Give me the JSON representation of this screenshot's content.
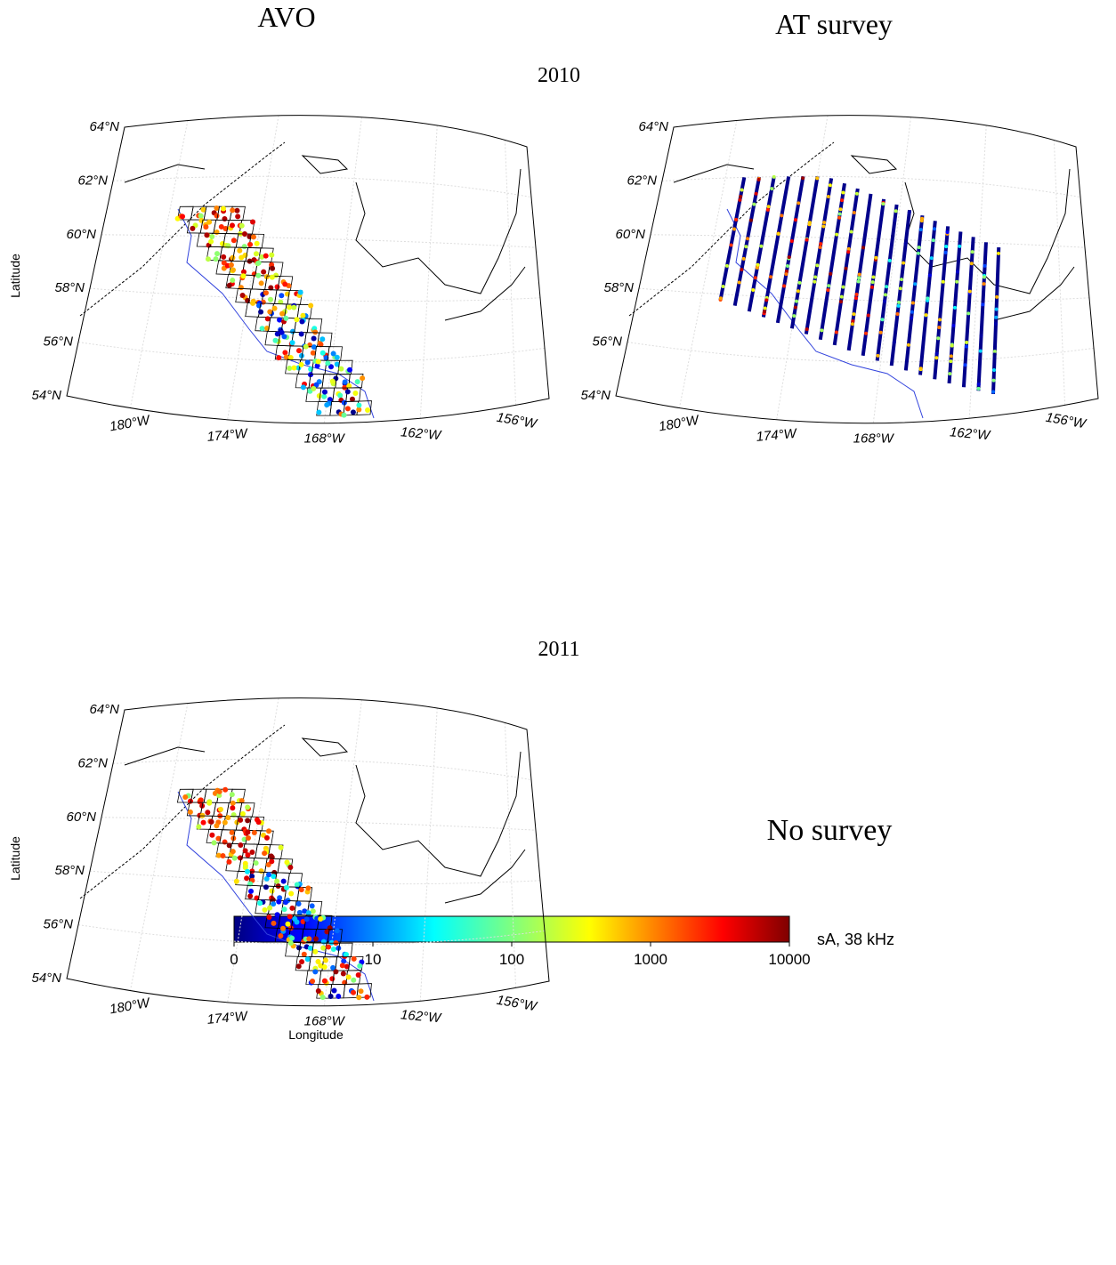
{
  "column_titles": [
    "AVO",
    "AT survey"
  ],
  "years": [
    "2010",
    "2011"
  ],
  "panels": [
    {
      "lat_labels": [
        "64°N",
        "62°N",
        "60°N",
        "58°N",
        "56°N",
        "54°N"
      ],
      "lon_labels": [
        "180°W",
        "174°W",
        "168°W",
        "162°W",
        "156°W"
      ],
      "y_label": "Latitude"
    },
    {
      "lat_labels": [
        "64°N",
        "62°N",
        "60°N",
        "58°N",
        "56°N",
        "54°N"
      ],
      "lon_labels": [
        "180°W",
        "174°W",
        "168°W",
        "162°W",
        "156°W"
      ]
    },
    {
      "lat_labels": [
        "64°N",
        "62°N",
        "60°N",
        "58°N",
        "56°N",
        "54°N"
      ],
      "lon_labels": [
        "180°W",
        "174°W",
        "168°W",
        "162°W",
        "156°W"
      ],
      "y_label": "Latitude",
      "x_label": "Longitude"
    }
  ],
  "no_survey": "No survey",
  "colorbar": {
    "ticks": [
      0,
      10,
      100,
      1000,
      10000
    ],
    "label": "sA, 38 kHz"
  }
}
